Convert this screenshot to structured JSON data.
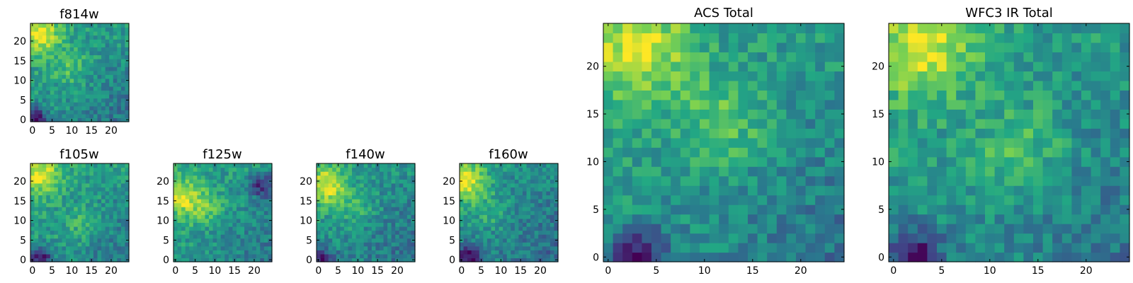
{
  "figure": {
    "colormap": "viridis",
    "colormap_stops": [
      "#440154",
      "#414487",
      "#2a788e",
      "#22a884",
      "#7ad151",
      "#fde725"
    ]
  },
  "chart_data": [
    {
      "type": "heatmap",
      "title": "f814w",
      "xlabel": "",
      "ylabel": "",
      "grid_size": [
        25,
        25
      ],
      "xlim": [
        0,
        24
      ],
      "ylim": [
        0,
        24
      ],
      "xticks": [
        "0",
        "5",
        "10",
        "15",
        "20"
      ],
      "yticks": [
        "0",
        "5",
        "10",
        "15",
        "20"
      ],
      "origin": "lower",
      "features": {
        "peak": {
          "x": 2,
          "y": 22,
          "value": 0.97
        },
        "secondary_peak": {
          "x": 10,
          "y": 13,
          "value": 0.78
        },
        "low_corner": {
          "x": 1,
          "y": 0,
          "value": 0.05
        },
        "mean_level": 0.55
      }
    },
    {
      "type": "heatmap",
      "title": "f105w",
      "xlabel": "",
      "ylabel": "",
      "grid_size": [
        25,
        25
      ],
      "xlim": [
        0,
        24
      ],
      "ylim": [
        0,
        24
      ],
      "xticks": [
        "0",
        "5",
        "10",
        "15",
        "20"
      ],
      "yticks": [
        "0",
        "5",
        "10",
        "15",
        "20"
      ],
      "origin": "lower",
      "features": {
        "peak": {
          "x": 2,
          "y": 22,
          "value": 0.95
        },
        "secondary_peak": {
          "x": 12,
          "y": 9,
          "value": 0.72
        },
        "low_corner": {
          "x": 2,
          "y": 0,
          "value": 0.08
        },
        "mean_level": 0.56
      }
    },
    {
      "type": "heatmap",
      "title": "f125w",
      "xlabel": "",
      "ylabel": "",
      "grid_size": [
        25,
        25
      ],
      "xlim": [
        0,
        24
      ],
      "ylim": [
        0,
        24
      ],
      "xticks": [
        "0",
        "5",
        "10",
        "15",
        "20"
      ],
      "yticks": [
        "0",
        "5",
        "10",
        "15",
        "20"
      ],
      "origin": "lower",
      "features": {
        "peak": {
          "x": 2,
          "y": 16,
          "value": 0.9
        },
        "secondary_peak": {
          "x": 8,
          "y": 13,
          "value": 0.75
        },
        "low_corner": {
          "x": 22,
          "y": 19,
          "value": 0.15
        },
        "mean_level": 0.55
      }
    },
    {
      "type": "heatmap",
      "title": "f140w",
      "xlabel": "",
      "ylabel": "",
      "grid_size": [
        25,
        25
      ],
      "xlim": [
        0,
        24
      ],
      "ylim": [
        0,
        24
      ],
      "xticks": [
        "0",
        "5",
        "10",
        "15",
        "20"
      ],
      "yticks": [
        "0",
        "5",
        "10",
        "15",
        "20"
      ],
      "origin": "lower",
      "features": {
        "peak": {
          "x": 2,
          "y": 19,
          "value": 0.95
        },
        "secondary_peak": {
          "x": 10,
          "y": 13,
          "value": 0.7
        },
        "low_corner": {
          "x": 1,
          "y": 0,
          "value": 0.08
        },
        "mean_level": 0.52
      }
    },
    {
      "type": "heatmap",
      "title": "f160w",
      "xlabel": "",
      "ylabel": "",
      "grid_size": [
        25,
        25
      ],
      "xlim": [
        0,
        24
      ],
      "ylim": [
        0,
        24
      ],
      "xticks": [
        "0",
        "5",
        "10",
        "15",
        "20"
      ],
      "yticks": [
        "0",
        "5",
        "10",
        "15",
        "20"
      ],
      "origin": "lower",
      "features": {
        "peak": {
          "x": 1,
          "y": 20,
          "value": 0.97
        },
        "secondary_peak": {
          "x": 8,
          "y": 12,
          "value": 0.68
        },
        "low_corner": {
          "x": 2,
          "y": 1,
          "value": 0.02
        },
        "mean_level": 0.5
      }
    },
    {
      "type": "heatmap",
      "title": "ACS Total",
      "xlabel": "",
      "ylabel": "",
      "grid_size": [
        25,
        25
      ],
      "xlim": [
        0,
        24
      ],
      "ylim": [
        0,
        24
      ],
      "xticks": [
        "0",
        "5",
        "10",
        "15",
        "20"
      ],
      "yticks": [
        "0",
        "5",
        "10",
        "15",
        "20"
      ],
      "origin": "lower",
      "features": {
        "peak": {
          "x": 3,
          "y": 22,
          "value": 0.97
        },
        "secondary_peak": {
          "x": 12,
          "y": 14,
          "value": 0.82
        },
        "low_corner": {
          "x": 3,
          "y": 0,
          "value": 0.04
        },
        "mean_level": 0.55
      }
    },
    {
      "type": "heatmap",
      "title": "WFC3 IR Total",
      "xlabel": "",
      "ylabel": "",
      "grid_size": [
        25,
        25
      ],
      "xlim": [
        0,
        24
      ],
      "ylim": [
        0,
        24
      ],
      "xticks": [
        "0",
        "5",
        "10",
        "15",
        "20"
      ],
      "yticks": [
        "0",
        "5",
        "10",
        "15",
        "20"
      ],
      "origin": "lower",
      "features": {
        "peak": {
          "x": 3,
          "y": 22,
          "value": 0.97
        },
        "secondary_peak": {
          "x": 13,
          "y": 11,
          "value": 0.8
        },
        "low_corner": {
          "x": 2,
          "y": 0,
          "value": 0.03
        },
        "mean_level": 0.55
      }
    }
  ]
}
